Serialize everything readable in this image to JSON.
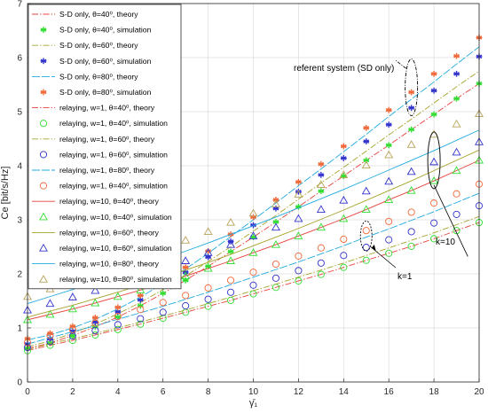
{
  "chart_data": {
    "type": "line",
    "xlabel": "γ̄₁",
    "ylabel": "Ce [bit/s/Hz]",
    "xlim": [
      0,
      20
    ],
    "ylim": [
      0,
      7
    ],
    "x_ticks": [
      "0",
      "2",
      "4",
      "6",
      "8",
      "10",
      "12",
      "14",
      "16",
      "18",
      "20"
    ],
    "y_ticks": [
      "0",
      "1",
      "2",
      "3",
      "4",
      "5",
      "6",
      "7"
    ],
    "grid": true,
    "legend_position": "top-left",
    "x": [
      0,
      1,
      2,
      3,
      4,
      5,
      6,
      7,
      8,
      9,
      10,
      11,
      12,
      13,
      14,
      15,
      16,
      17,
      18,
      19,
      20
    ],
    "series": [
      {
        "name": "S-D only, θ=40⁰, theory",
        "color": "#e8413c",
        "dash": "7 2 1.5 2",
        "marker": null,
        "values": [
          0.62,
          0.72,
          0.86,
          1.02,
          1.2,
          1.41,
          1.64,
          1.88,
          2.14,
          2.41,
          2.68,
          2.96,
          3.24,
          3.53,
          3.81,
          4.1,
          4.38,
          4.67,
          4.95,
          5.24,
          5.52
        ]
      },
      {
        "name": "S-D only, θ=40⁰, simulation",
        "color": "#33dd33",
        "dash": null,
        "marker": "asterisk",
        "values": [
          0.62,
          0.72,
          0.86,
          1.02,
          1.2,
          1.41,
          1.64,
          1.88,
          2.14,
          2.41,
          2.68,
          2.96,
          3.24,
          3.53,
          3.81,
          4.1,
          4.38,
          4.67,
          4.95,
          5.24,
          5.52
        ]
      },
      {
        "name": "S-D only,  θ=60⁰, theory",
        "color": "#a6a32a",
        "dash": "7 2 1.5 2",
        "marker": null,
        "values": [
          0.65,
          0.76,
          0.9,
          1.07,
          1.26,
          1.47,
          1.71,
          1.96,
          2.23,
          2.5,
          2.79,
          3.08,
          3.38,
          3.68,
          3.97,
          4.27,
          4.57,
          4.86,
          5.16,
          5.46,
          5.75
        ]
      },
      {
        "name": "S-D only, θ=60⁰, simulation",
        "color": "#3333cc",
        "dash": null,
        "marker": "asterisk",
        "values": [
          0.7,
          0.8,
          0.94,
          1.11,
          1.3,
          1.52,
          1.77,
          2.03,
          2.31,
          2.6,
          2.9,
          3.21,
          3.52,
          3.83,
          4.14,
          4.45,
          4.76,
          5.07,
          5.39,
          5.7,
          6.02
        ]
      },
      {
        "name": "S-D only, θ=80⁰, theory",
        "color": "#22aadd",
        "dash": "9 2",
        "marker": null,
        "values": [
          0.78,
          0.87,
          1.0,
          1.16,
          1.35,
          1.57,
          1.82,
          2.09,
          2.38,
          2.69,
          3.0,
          3.31,
          3.63,
          3.94,
          4.26,
          4.58,
          4.91,
          5.23,
          5.55,
          5.88,
          6.2
        ]
      },
      {
        "name": "S-D only, θ=80⁰, simulation",
        "color": "#f0693a",
        "dash": null,
        "marker": "asterisk",
        "values": [
          0.8,
          0.9,
          1.03,
          1.19,
          1.38,
          1.6,
          1.85,
          2.12,
          2.42,
          2.73,
          3.05,
          3.37,
          3.7,
          4.03,
          4.36,
          4.7,
          5.03,
          5.36,
          5.7,
          6.03,
          6.37
        ]
      },
      {
        "name": "relaying, w=1, θ=40⁰, theory",
        "color": "#e8413c",
        "dash": "7 2 1.5 2",
        "marker": null,
        "values": [
          0.58,
          0.68,
          0.77,
          0.87,
          0.97,
          1.07,
          1.18,
          1.29,
          1.4,
          1.51,
          1.63,
          1.75,
          1.87,
          1.99,
          2.12,
          2.25,
          2.38,
          2.51,
          2.65,
          2.8,
          2.95
        ]
      },
      {
        "name": "relaying, w=1, θ=40⁰, simulation",
        "color": "#33dd33",
        "dash": null,
        "marker": "circle",
        "values": [
          0.58,
          0.68,
          0.77,
          0.87,
          0.97,
          1.07,
          1.18,
          1.29,
          1.4,
          1.51,
          1.63,
          1.75,
          1.87,
          1.99,
          2.12,
          2.25,
          2.38,
          2.51,
          2.65,
          2.8,
          2.95
        ]
      },
      {
        "name": "relaying, w=1, θ=60⁰, theory",
        "color": "#a6a32a",
        "dash": "7 2 1.5 2",
        "marker": null,
        "values": [
          0.6,
          0.71,
          0.8,
          0.9,
          1.0,
          1.11,
          1.22,
          1.33,
          1.45,
          1.57,
          1.69,
          1.81,
          1.94,
          2.07,
          2.2,
          2.34,
          2.48,
          2.62,
          2.76,
          2.91,
          3.06
        ]
      },
      {
        "name": "relaying, w=1, θ=60⁰, simulation",
        "color": "#3333cc",
        "dash": null,
        "marker": "circle",
        "values": [
          0.64,
          0.75,
          0.85,
          0.95,
          1.06,
          1.17,
          1.29,
          1.41,
          1.53,
          1.66,
          1.79,
          1.92,
          2.06,
          2.2,
          2.34,
          2.49,
          2.63,
          2.78,
          2.94,
          3.1,
          3.26
        ]
      },
      {
        "name": "relaying, w=1, θ=80⁰, theory",
        "color": "#22aadd",
        "dash": "9 2",
        "marker": null,
        "values": [
          0.7,
          0.82,
          0.93,
          1.04,
          1.16,
          1.28,
          1.4,
          1.53,
          1.66,
          1.8,
          1.94,
          2.08,
          2.22,
          2.37,
          2.52,
          2.68,
          2.83,
          2.99,
          3.15,
          3.32,
          3.49
        ]
      },
      {
        "name": "relaying, w=1, θ=40⁰, simulation",
        "color": "#f0693a",
        "dash": null,
        "marker": "circle",
        "values": [
          0.73,
          0.86,
          0.97,
          1.09,
          1.21,
          1.34,
          1.47,
          1.6,
          1.74,
          1.88,
          2.03,
          2.18,
          2.33,
          2.48,
          2.64,
          2.8,
          2.97,
          3.14,
          3.31,
          3.48,
          3.66
        ]
      },
      {
        "name": "relaying, w=10, θ=40⁰, theory",
        "color": "#e8413c",
        "dash": null,
        "marker": null,
        "values": [
          1.15,
          1.25,
          1.35,
          1.46,
          1.58,
          1.7,
          1.83,
          1.96,
          2.1,
          2.24,
          2.39,
          2.54,
          2.7,
          2.86,
          3.02,
          3.19,
          3.37,
          3.54,
          3.72,
          3.91,
          4.1
        ]
      },
      {
        "name": "relaying, w=10, θ=40⁰, simulation",
        "color": "#33dd33",
        "dash": null,
        "marker": "triangle",
        "values": [
          1.15,
          1.25,
          1.35,
          1.46,
          1.58,
          1.7,
          1.83,
          1.96,
          2.1,
          2.24,
          2.39,
          2.54,
          2.7,
          2.86,
          3.02,
          3.19,
          3.37,
          3.54,
          3.72,
          3.91,
          4.1
        ]
      },
      {
        "name": "relaying, w=10, θ=60⁰, theory",
        "color": "#a6a32a",
        "dash": null,
        "marker": null,
        "values": [
          1.2,
          1.31,
          1.42,
          1.54,
          1.66,
          1.79,
          1.93,
          2.07,
          2.21,
          2.36,
          2.52,
          2.68,
          2.84,
          3.01,
          3.18,
          3.36,
          3.54,
          3.72,
          3.91,
          4.1,
          4.29
        ]
      },
      {
        "name": "relaying, w=10, θ=60⁰, simulation",
        "color": "#3333cc",
        "dash": null,
        "marker": "triangle",
        "values": [
          1.33,
          1.45,
          1.57,
          1.69,
          1.82,
          1.96,
          2.1,
          2.24,
          2.39,
          2.54,
          2.7,
          2.86,
          3.02,
          3.19,
          3.36,
          3.53,
          3.71,
          3.89,
          4.07,
          4.25,
          4.44
        ]
      },
      {
        "name": "relaying, w=10, θ=80⁰, theory",
        "color": "#22aadd",
        "dash": null,
        "marker": null,
        "values": [
          1.45,
          1.58,
          1.71,
          1.84,
          1.98,
          2.12,
          2.27,
          2.42,
          2.57,
          2.73,
          2.89,
          3.05,
          3.22,
          3.39,
          3.56,
          3.74,
          3.92,
          4.1,
          4.28,
          4.47,
          4.66
        ]
      },
      {
        "name": "relaying, w=10, θ=80⁰, simulation",
        "color": "#b8a35a",
        "dash": null,
        "marker": "triangle",
        "values": [
          1.58,
          1.72,
          1.86,
          2.0,
          2.15,
          2.3,
          2.46,
          2.62,
          2.78,
          2.95,
          3.12,
          3.29,
          3.47,
          3.65,
          3.83,
          4.01,
          4.2,
          4.39,
          4.58,
          4.77,
          4.96
        ]
      }
    ],
    "annotations": [
      "referent system (SD only)",
      "k=10",
      "k=1"
    ]
  }
}
